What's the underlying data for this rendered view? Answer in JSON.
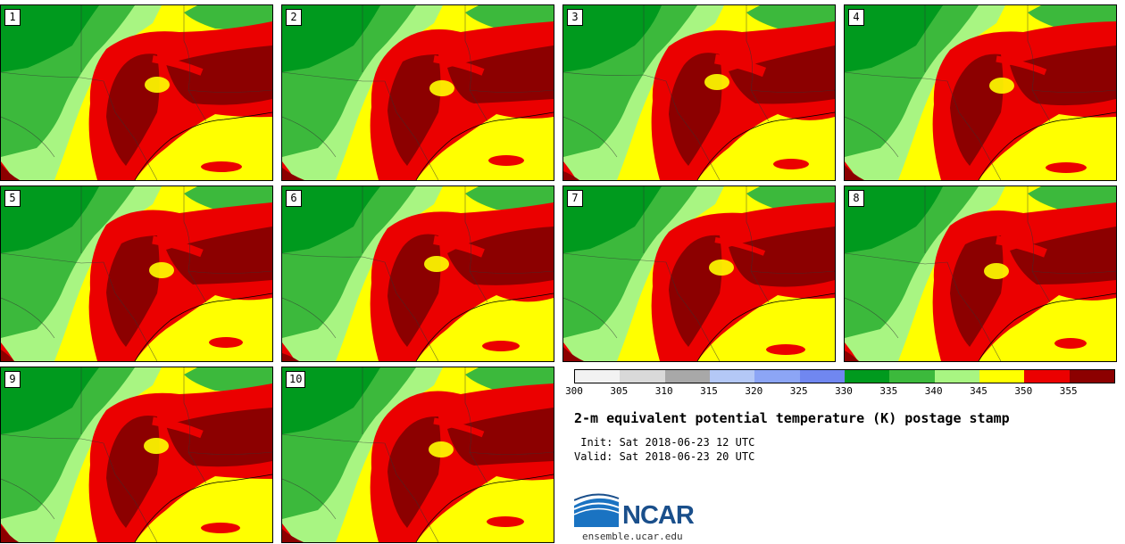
{
  "panels": [
    "1",
    "2",
    "3",
    "4",
    "5",
    "6",
    "7",
    "8",
    "9",
    "10"
  ],
  "legend": {
    "ticks": [
      "300",
      "305",
      "310",
      "315",
      "320",
      "325",
      "330",
      "335",
      "340",
      "345",
      "350",
      "355"
    ],
    "colors": [
      "#f2f2f2",
      "#d9d9d9",
      "#a8a8a8",
      "#b4c8f6",
      "#8ca5f5",
      "#7087f0",
      "#009a1e",
      "#3cb93c",
      "#a8f582",
      "#ffff00",
      "#eb0000",
      "#8c0000"
    ]
  },
  "title": "2-m equivalent potential temperature (K) postage stamp",
  "init_label": " Init: Sat 2018-06-23 12 UTC",
  "valid_label": "Valid: Sat 2018-06-23 20 UTC",
  "logo": {
    "text": "NCAR",
    "site": "ensemble.ucar.edu"
  },
  "map_colors": {
    "green_dark": "#009a1e",
    "green_mid": "#3cb93c",
    "green_light": "#a8f582",
    "yellow": "#ffff00",
    "red": "#eb0000",
    "dark_red": "#8c0000"
  }
}
